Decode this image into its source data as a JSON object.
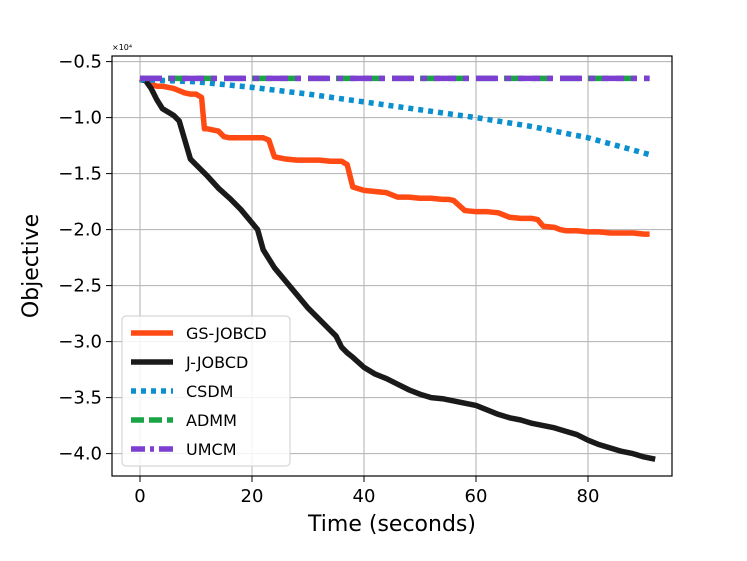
{
  "chart_data": {
    "type": "line",
    "title": "",
    "xlabel": "Time (seconds)",
    "ylabel": "Objective",
    "y_offset_label": "×10⁴",
    "xlim": [
      -5,
      95
    ],
    "ylim": [
      -4.2,
      -0.45
    ],
    "xticks": [
      0,
      20,
      40,
      60,
      80
    ],
    "xtick_labels": [
      "0",
      "20",
      "40",
      "60",
      "80"
    ],
    "yticks": [
      -0.5,
      -1.0,
      -1.5,
      -2.0,
      -2.5,
      -3.0,
      -3.5,
      -4.0
    ],
    "ytick_labels": [
      "−0.5",
      "−1.0",
      "−1.5",
      "−2.0",
      "−2.5",
      "−3.0",
      "−3.5",
      "−4.0"
    ],
    "grid": true,
    "legend_position": "bottom-left",
    "series": [
      {
        "name": "GS-JOBCD",
        "color": "#ff4a13",
        "style": "solid",
        "x": [
          0,
          1,
          2,
          3,
          4,
          5,
          6,
          7,
          8,
          9,
          10,
          11,
          11.5,
          12,
          13,
          14,
          15,
          16,
          18,
          20,
          22,
          23,
          24,
          26,
          28,
          30,
          32,
          34,
          36,
          37,
          38,
          40,
          42,
          44,
          46,
          48,
          50,
          52,
          54,
          55,
          56,
          58,
          60,
          62,
          64,
          65,
          66,
          68,
          70,
          71,
          72,
          74,
          75,
          76,
          78,
          80,
          82,
          84,
          86,
          88,
          90,
          91
        ],
        "y": [
          -0.65,
          -0.67,
          -0.7,
          -0.72,
          -0.72,
          -0.73,
          -0.74,
          -0.76,
          -0.78,
          -0.79,
          -0.79,
          -0.82,
          -1.1,
          -1.1,
          -1.11,
          -1.12,
          -1.17,
          -1.18,
          -1.18,
          -1.18,
          -1.18,
          -1.2,
          -1.35,
          -1.37,
          -1.38,
          -1.38,
          -1.38,
          -1.39,
          -1.39,
          -1.42,
          -1.62,
          -1.65,
          -1.66,
          -1.67,
          -1.71,
          -1.71,
          -1.72,
          -1.72,
          -1.73,
          -1.73,
          -1.74,
          -1.83,
          -1.84,
          -1.84,
          -1.85,
          -1.87,
          -1.89,
          -1.9,
          -1.9,
          -1.91,
          -1.97,
          -1.98,
          -2.0,
          -2.01,
          -2.01,
          -2.02,
          -2.02,
          -2.03,
          -2.03,
          -2.03,
          -2.04,
          -2.04
        ]
      },
      {
        "name": "J-JOBCD",
        "color": "#1a1a1a",
        "style": "solid",
        "x": [
          0,
          1,
          2,
          3,
          4,
          5,
          6,
          7,
          8,
          9,
          10,
          12,
          14,
          16,
          18,
          20,
          21,
          22,
          24,
          26,
          28,
          30,
          32,
          34,
          35,
          36,
          37,
          38,
          40,
          42,
          44,
          46,
          48,
          50,
          52,
          54,
          56,
          58,
          60,
          62,
          64,
          66,
          68,
          70,
          72,
          74,
          76,
          78,
          80,
          82,
          84,
          86,
          88,
          90,
          92
        ],
        "y": [
          -0.66,
          -0.67,
          -0.74,
          -0.84,
          -0.92,
          -0.95,
          -0.98,
          -1.03,
          -1.2,
          -1.37,
          -1.42,
          -1.52,
          -1.63,
          -1.72,
          -1.82,
          -1.94,
          -2.0,
          -2.18,
          -2.34,
          -2.46,
          -2.58,
          -2.7,
          -2.8,
          -2.9,
          -2.95,
          -3.05,
          -3.1,
          -3.14,
          -3.23,
          -3.29,
          -3.33,
          -3.38,
          -3.43,
          -3.47,
          -3.5,
          -3.51,
          -3.53,
          -3.55,
          -3.57,
          -3.61,
          -3.65,
          -3.68,
          -3.7,
          -3.73,
          -3.75,
          -3.77,
          -3.8,
          -3.83,
          -3.88,
          -3.92,
          -3.95,
          -3.98,
          -4.0,
          -4.03,
          -4.05
        ]
      },
      {
        "name": "CSDM",
        "color": "#0a8fcf",
        "style": "dotted",
        "x": [
          0,
          10,
          20,
          30,
          40,
          50,
          60,
          70,
          80,
          91
        ],
        "y": [
          -0.66,
          -0.68,
          -0.73,
          -0.79,
          -0.86,
          -0.93,
          -1.0,
          -1.08,
          -1.18,
          -1.33
        ]
      },
      {
        "name": "ADMM",
        "color": "#1aa347",
        "style": "dashed",
        "x": [
          0,
          91
        ],
        "y": [
          -0.65,
          -0.65
        ]
      },
      {
        "name": "UMCM",
        "color": "#7c3fd1",
        "style": "dashdot",
        "x": [
          0,
          91
        ],
        "y": [
          -0.65,
          -0.65
        ]
      }
    ]
  }
}
